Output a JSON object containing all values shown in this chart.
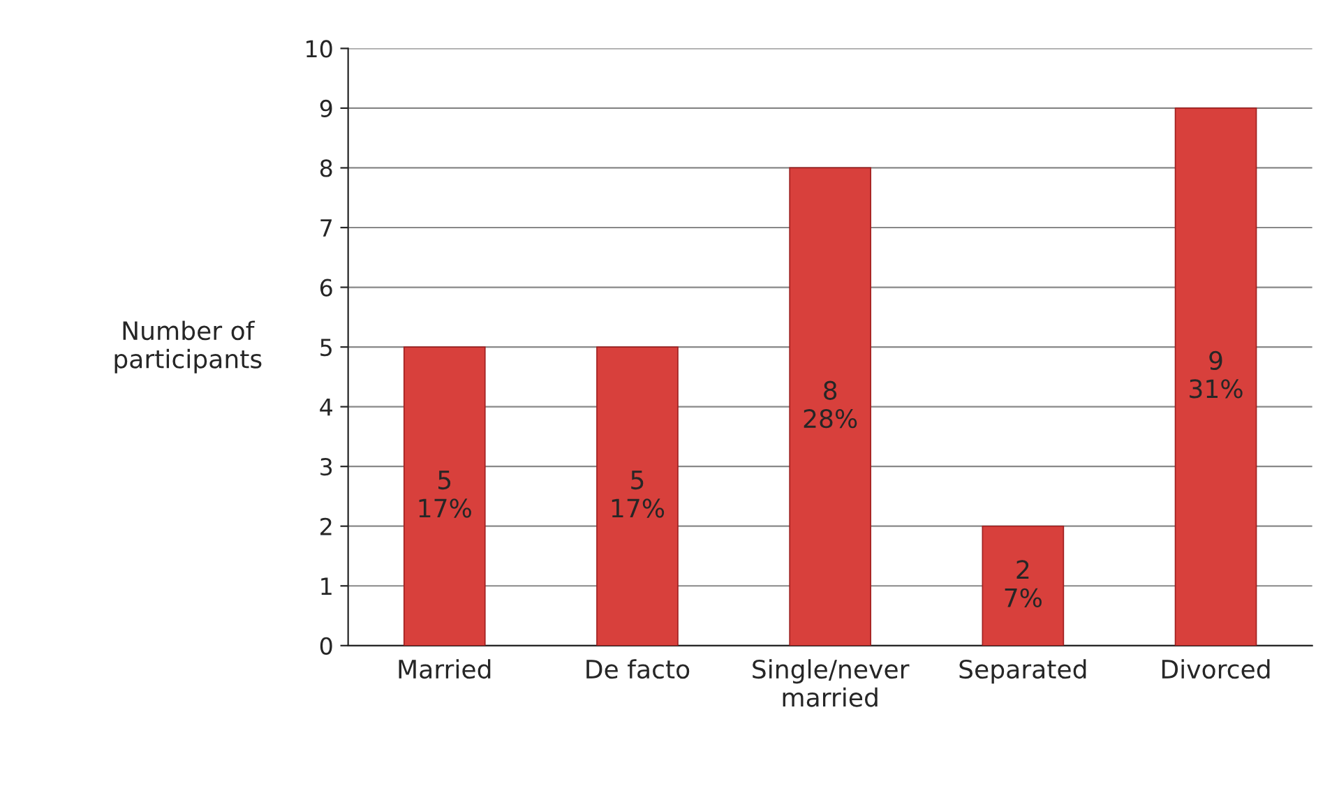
{
  "chart_data": {
    "type": "bar",
    "ylabel": "Number of\nparticipants",
    "categories": [
      "Married",
      "De facto",
      "Single/never\nmarried",
      "Separated",
      "Divorced"
    ],
    "values": [
      5,
      5,
      8,
      2,
      9
    ],
    "color": "#d8403c",
    "value_labels": [
      "5\n17%",
      "5\n17%",
      "8\n28%",
      "2\n7%",
      "9\n31%"
    ],
    "ylim": [
      0,
      10
    ],
    "yticks": [
      0,
      1,
      2,
      3,
      4,
      5,
      6,
      7,
      8,
      9,
      10
    ],
    "grid": "y",
    "legend": false
  }
}
